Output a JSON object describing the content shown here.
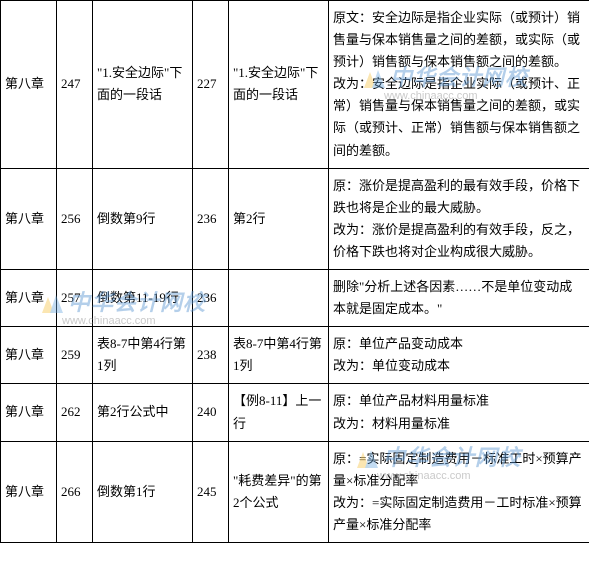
{
  "watermark": {
    "title": "中华会计网校",
    "url": "www.chinaacc.com"
  },
  "rows": [
    {
      "c1": "第八章",
      "c2": "247",
      "c3": "\"1.安全边际\"下面的一段话",
      "c4": "227",
      "c5": "\"1.安全边际\"下面的一段话",
      "c6": "原文：安全边际是指企业实际（或预计）销售量与保本销售量之间的差额，或实际（或预计）销售额与保本销售额之间的差额。\n改为：安全边际是指企业实际（或预计、正常）销售量与保本销售量之间的差额，或实际（或预计、正常）销售额与保本销售额之间的差额。"
    },
    {
      "c1": "第八章",
      "c2": "256",
      "c3": "倒数第9行",
      "c4": "236",
      "c5": "第2行",
      "c6": "原：涨价是提高盈利的最有效手段，价格下跌也将是企业的最大威胁。\n改为：涨价是提高盈利的有效手段，反之，价格下跌也将对企业构成很大威胁。"
    },
    {
      "c1": "第八章",
      "c2": "257",
      "c3": "倒数第11-19行",
      "c4": "236",
      "c5": "",
      "c6": "删除\"分析上述各因素……不是单位变动成本就是固定成本。\""
    },
    {
      "c1": "第八章",
      "c2": "259",
      "c3": "表8-7中第4行第1列",
      "c4": "238",
      "c5": "表8-7中第4行第1列",
      "c6": "原：单位产品变动成本\n改为：单位变动成本"
    },
    {
      "c1": "第八章",
      "c2": "262",
      "c3": "第2行公式中",
      "c4": "240",
      "c5": "【例8-11】上一行",
      "c6": "原：单位产品材料用量标准\n改为：材料用量标准"
    },
    {
      "c1": "第八章",
      "c2": "266",
      "c3": "倒数第1行",
      "c4": "245",
      "c5": "\"耗费差异\"的第2个公式",
      "c6": "原：=实际固定制造费用－标准工时×预算产量×标准分配率\n改为：=实际固定制造费用－工时标准×预算产量×标准分配率"
    }
  ]
}
